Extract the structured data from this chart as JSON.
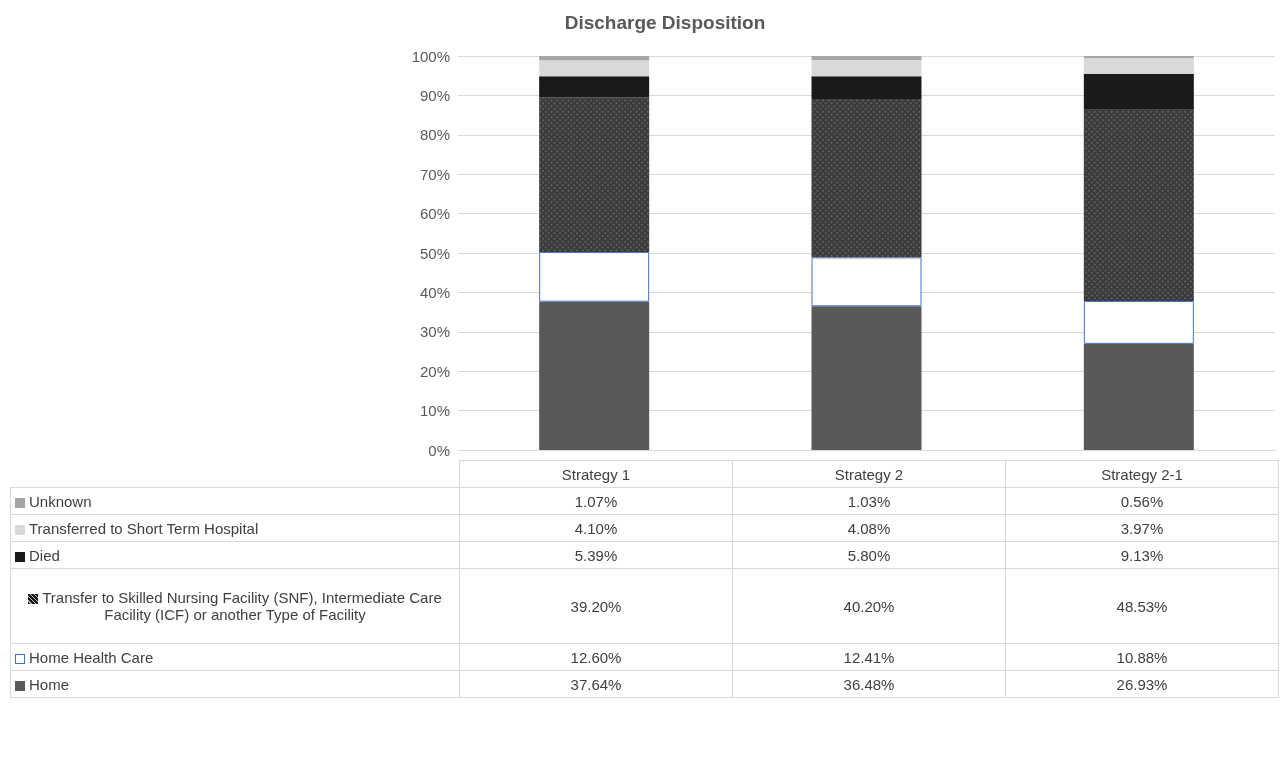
{
  "chart_data": {
    "type": "bar",
    "title": "Discharge Disposition",
    "stacked": true,
    "categories": [
      "Strategy 1",
      "Strategy 2",
      "Strategy 2-1"
    ],
    "series": [
      {
        "name": "Home",
        "color": "#595959",
        "values": [
          37.64,
          36.48,
          26.93
        ],
        "value_labels": [
          "37.64%",
          "36.48%",
          "26.93%"
        ]
      },
      {
        "name": "Home Health Care",
        "color": "#ffffff",
        "values": [
          12.6,
          12.41,
          10.88
        ],
        "value_labels": [
          "12.60%",
          "12.41%",
          "10.88%"
        ]
      },
      {
        "name": "Transfer to Skilled Nursing Facility (SNF), Intermediate Care Facility (ICF) or another Type of Facility",
        "color": "#3a3a3a",
        "values": [
          39.2,
          40.2,
          48.53
        ],
        "value_labels": [
          "39.20%",
          "40.20%",
          "48.53%"
        ]
      },
      {
        "name": "Died",
        "color": "#1a1a1a",
        "values": [
          5.39,
          5.8,
          9.13
        ],
        "value_labels": [
          "5.39%",
          "5.80%",
          "9.13%"
        ]
      },
      {
        "name": "Transferred to Short Term Hospital",
        "color": "#d9d9d9",
        "values": [
          4.1,
          4.08,
          3.97
        ],
        "value_labels": [
          "4.10%",
          "4.08%",
          "3.97%"
        ]
      },
      {
        "name": "Unknown",
        "color": "#a6a6a6",
        "values": [
          1.07,
          1.03,
          0.56
        ],
        "value_labels": [
          "1.07%",
          "1.03%",
          "0.56%"
        ]
      }
    ],
    "ylim": [
      0,
      100
    ],
    "yticks": [
      {
        "value": 0,
        "label": "0%"
      },
      {
        "value": 10,
        "label": "10%"
      },
      {
        "value": 20,
        "label": "20%"
      },
      {
        "value": 30,
        "label": "30%"
      },
      {
        "value": 40,
        "label": "40%"
      },
      {
        "value": 50,
        "label": "50%"
      },
      {
        "value": 60,
        "label": "60%"
      },
      {
        "value": 70,
        "label": "70%"
      },
      {
        "value": 80,
        "label": "80%"
      },
      {
        "value": 90,
        "label": "90%"
      },
      {
        "value": 100,
        "label": "100%"
      }
    ],
    "grid": "y",
    "legend": "bottom left"
  }
}
